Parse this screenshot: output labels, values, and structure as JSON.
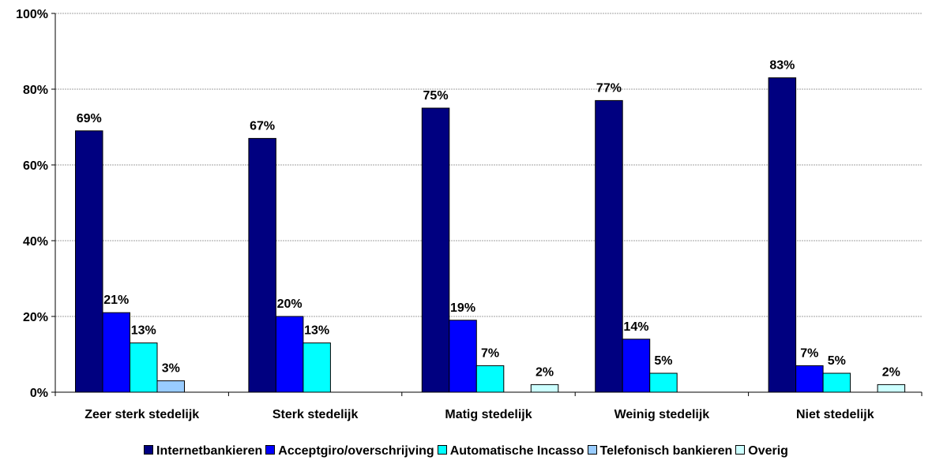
{
  "chart_data": {
    "type": "bar",
    "categories": [
      "Zeer sterk stedelijk",
      "Sterk stedelijk",
      "Matig stedelijk",
      "Weinig stedelijk",
      "Niet stedelijk"
    ],
    "series": [
      {
        "name": "Internetbankieren",
        "color": "#000080",
        "values": [
          69,
          67,
          75,
          77,
          83
        ],
        "labels": [
          "69%",
          "67%",
          "75%",
          "77%",
          "83%"
        ]
      },
      {
        "name": "Acceptgiro/overschrijving",
        "color": "#0000FF",
        "values": [
          21,
          20,
          19,
          14,
          7
        ],
        "labels": [
          "21%",
          "20%",
          "19%",
          "14%",
          "7%"
        ]
      },
      {
        "name": "Automatische Incasso",
        "color": "#00FFFF",
        "values": [
          13,
          13,
          7,
          5,
          5
        ],
        "labels": [
          "13%",
          "13%",
          "7%",
          "5%",
          "5%"
        ]
      },
      {
        "name": "Telefonisch bankieren",
        "color": "#99CCFF",
        "values": [
          3,
          null,
          null,
          null,
          null
        ],
        "labels": [
          "3%",
          null,
          null,
          null,
          null
        ]
      },
      {
        "name": "Overig",
        "color": "#CCFFFF",
        "values": [
          null,
          null,
          2,
          null,
          2
        ],
        "labels": [
          null,
          null,
          "2%",
          null,
          "2%"
        ]
      }
    ],
    "yticks": [
      "0%",
      "20%",
      "40%",
      "60%",
      "80%",
      "100%"
    ],
    "ylim": [
      0,
      100
    ],
    "grid": true,
    "legend_position": "bottom",
    "title": "",
    "xlabel": "",
    "ylabel": ""
  }
}
